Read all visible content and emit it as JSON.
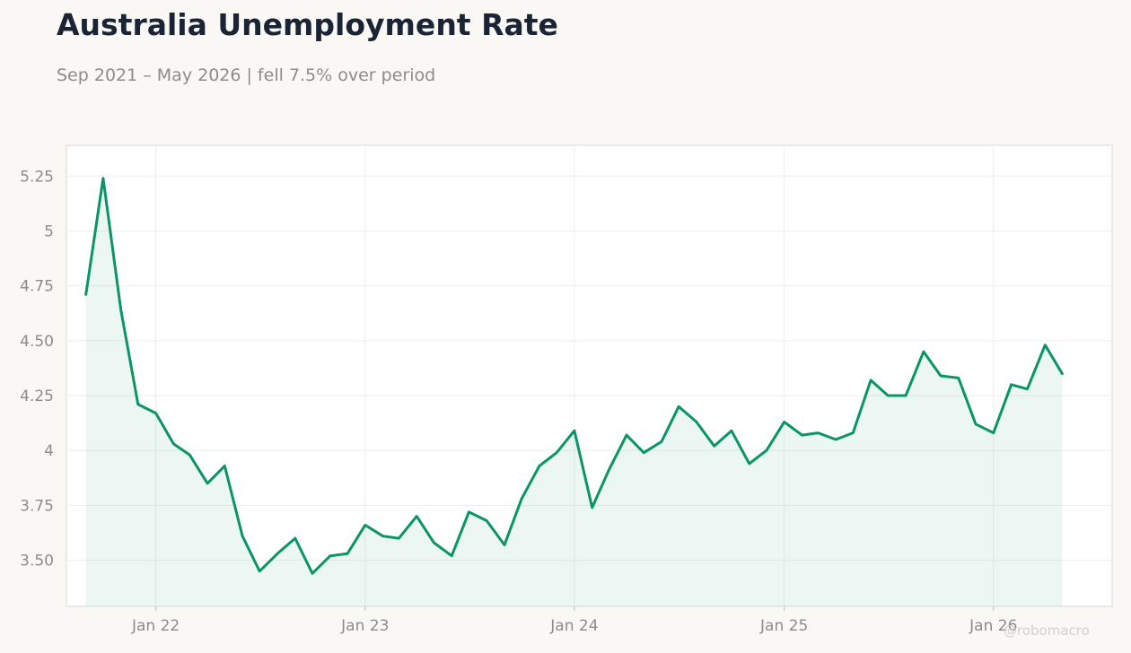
{
  "title": "Australia Unemployment Rate",
  "subtitle": "Sep 2021 – May 2026 | fell 7.5% over period",
  "watermark": "@robomacro",
  "colors": {
    "line": "#0a9468",
    "fill": "#0a9468",
    "background": "#f9f8f5",
    "plot_background": "#ffffff",
    "grid": "#eeeeee",
    "tick_text": "#8c8c8c"
  },
  "chart_data": {
    "type": "area",
    "title": "Australia Unemployment Rate",
    "xlabel": "",
    "ylabel": "",
    "grid": true,
    "legend": "none",
    "ylim": [
      3.29,
      5.39
    ],
    "xlim": [
      "2021-07-29",
      "2026-07-27"
    ],
    "y_ticks": [
      3.5,
      3.75,
      4,
      4.25,
      4.5,
      4.75,
      5,
      5.25
    ],
    "y_tick_labels": [
      "3.50",
      "3.75",
      "4",
      "4.25",
      "4.50",
      "4.75",
      "5",
      "5.25"
    ],
    "x_ticks": [
      "2022-01-01",
      "2023-01-01",
      "2024-01-01",
      "2025-01-01",
      "2026-01-01"
    ],
    "x_tick_labels": [
      "Jan 22",
      "Jan 23",
      "Jan 24",
      "Jan 25",
      "Jan 26"
    ],
    "series": [
      {
        "dates": [
          "2021-09-01",
          "2021-10-01",
          "2021-11-01",
          "2021-12-01",
          "2022-01-01",
          "2022-02-01",
          "2022-03-01",
          "2022-04-01",
          "2022-05-01",
          "2022-06-01",
          "2022-07-01",
          "2022-08-01",
          "2022-09-01",
          "2022-10-01",
          "2022-11-01",
          "2022-12-01",
          "2023-01-01",
          "2023-02-01",
          "2023-03-01",
          "2023-04-01",
          "2023-05-01",
          "2023-06-01",
          "2023-07-01",
          "2023-08-01",
          "2023-09-01",
          "2023-10-01",
          "2023-11-01",
          "2023-12-01",
          "2024-01-01",
          "2024-02-01",
          "2024-03-01",
          "2024-04-01",
          "2024-05-01",
          "2024-06-01",
          "2024-07-01",
          "2024-08-01",
          "2024-09-01",
          "2024-10-01",
          "2024-11-01",
          "2024-12-01",
          "2025-01-01",
          "2025-02-01",
          "2025-03-01",
          "2025-04-01",
          "2025-05-01",
          "2025-06-01",
          "2025-07-01",
          "2025-08-01",
          "2025-09-01",
          "2025-10-01",
          "2025-11-01",
          "2025-12-01",
          "2026-01-01",
          "2026-02-01",
          "2026-03-01",
          "2026-04-01",
          "2026-05-01"
        ],
        "values": [
          4.71,
          5.24,
          4.64,
          4.21,
          4.17,
          4.03,
          3.98,
          3.85,
          3.93,
          3.61,
          3.45,
          3.53,
          3.6,
          3.44,
          3.52,
          3.53,
          3.66,
          3.61,
          3.6,
          3.7,
          3.58,
          3.52,
          3.72,
          3.68,
          3.57,
          3.78,
          3.93,
          3.99,
          4.09,
          3.74,
          3.91,
          4.07,
          3.99,
          4.04,
          4.2,
          4.13,
          4.02,
          4.09,
          3.94,
          4.0,
          4.13,
          4.07,
          4.08,
          4.05,
          4.08,
          4.32,
          4.25,
          4.25,
          4.45,
          4.34,
          4.33,
          4.12,
          4.08,
          4.3,
          4.28,
          4.48,
          4.35
        ]
      }
    ]
  }
}
